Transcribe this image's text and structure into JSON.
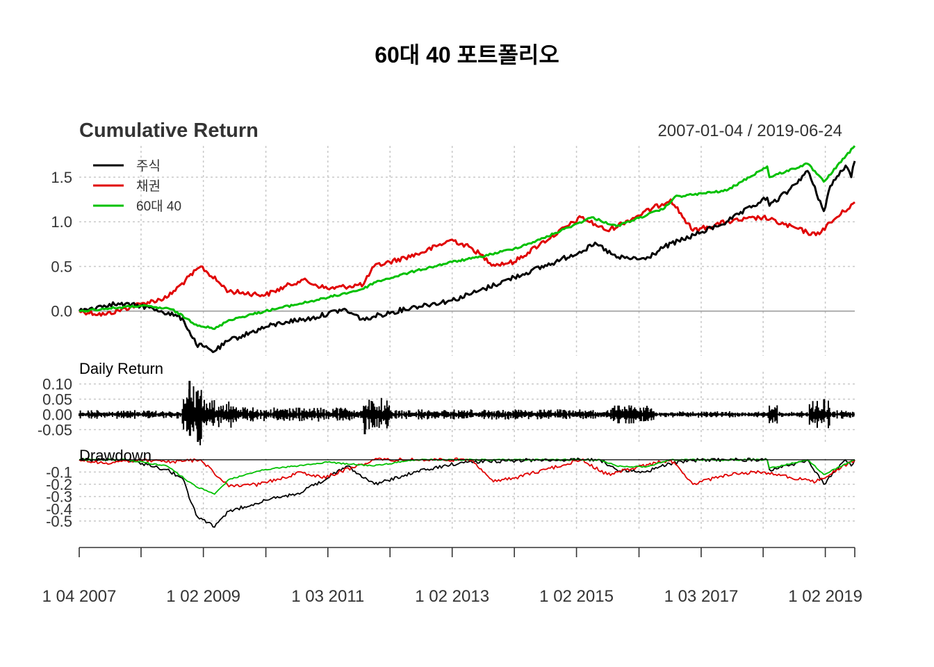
{
  "title": "60대 40 포트폴리오",
  "date_range": "2007-01-04 / 2019-06-24",
  "colors": {
    "stock": "#000000",
    "bond": "#e00000",
    "mix": "#00c000",
    "zero": "#999999",
    "grid": "#c8c8c8"
  },
  "chart_data": [
    {
      "type": "line",
      "title": "Cumulative Return",
      "ylim": [
        -0.5,
        1.85
      ],
      "y_ticks": [
        {
          "value": 0.0,
          "label": "0.0"
        },
        {
          "value": 0.5,
          "label": "0.5"
        },
        {
          "value": 1.0,
          "label": "1.0"
        },
        {
          "value": 1.5,
          "label": "1.5"
        }
      ],
      "grid": true,
      "legend_position": "top-left",
      "x_start": "2007-01-04",
      "x_end": "2019-06-24",
      "series": [
        {
          "name": "주식",
          "color_key": "stock",
          "x": [
            "2007-01-04",
            "2007-07-01",
            "2008-01-01",
            "2008-05-01",
            "2008-09-01",
            "2008-11-20",
            "2009-03-09",
            "2009-06-01",
            "2010-01-01",
            "2010-05-01",
            "2010-10-01",
            "2011-04-01",
            "2011-08-08",
            "2011-10-01",
            "2012-06-01",
            "2013-01-01",
            "2013-06-01",
            "2014-01-01",
            "2014-09-01",
            "2015-05-01",
            "2015-08-25",
            "2016-02-11",
            "2016-06-01",
            "2017-01-01",
            "2017-06-01",
            "2018-01-26",
            "2018-02-08",
            "2018-06-01",
            "2018-09-20",
            "2018-12-24",
            "2019-01-31",
            "2019-05-01",
            "2019-06-03",
            "2019-06-24"
          ],
          "y": [
            0.0,
            0.08,
            0.06,
            0.0,
            -0.08,
            -0.37,
            -0.45,
            -0.33,
            -0.18,
            -0.12,
            -0.08,
            0.02,
            -0.1,
            -0.06,
            0.05,
            0.12,
            0.22,
            0.38,
            0.55,
            0.75,
            0.6,
            0.58,
            0.72,
            0.88,
            1.0,
            1.27,
            1.18,
            1.35,
            1.57,
            1.12,
            1.4,
            1.63,
            1.5,
            1.68
          ]
        },
        {
          "name": "채권",
          "color_key": "bond",
          "x": [
            "2007-01-04",
            "2007-06-01",
            "2008-01-01",
            "2008-06-01",
            "2008-12-18",
            "2009-06-01",
            "2010-01-01",
            "2010-08-01",
            "2011-01-01",
            "2011-08-01",
            "2011-10-01",
            "2012-07-01",
            "2013-01-01",
            "2013-05-01",
            "2013-09-01",
            "2014-01-01",
            "2014-06-01",
            "2015-01-30",
            "2015-07-01",
            "2016-07-08",
            "2016-11-15",
            "2017-06-01",
            "2018-01-01",
            "2018-11-08",
            "2019-06-24"
          ],
          "y": [
            0.0,
            -0.04,
            0.08,
            0.15,
            0.5,
            0.22,
            0.18,
            0.35,
            0.25,
            0.3,
            0.5,
            0.65,
            0.8,
            0.7,
            0.52,
            0.55,
            0.75,
            1.05,
            0.9,
            1.25,
            0.9,
            1.0,
            1.05,
            0.85,
            1.22
          ]
        },
        {
          "name": "60대 40",
          "color_key": "mix",
          "x": [
            "2007-01-04",
            "2007-07-01",
            "2008-01-01",
            "2008-07-01",
            "2008-11-20",
            "2009-03-09",
            "2009-06-01",
            "2010-01-01",
            "2011-01-01",
            "2011-08-01",
            "2011-10-01",
            "2012-06-01",
            "2013-01-01",
            "2013-06-01",
            "2014-01-01",
            "2014-06-01",
            "2015-04-01",
            "2015-08-25",
            "2016-06-01",
            "2016-08-01",
            "2017-06-01",
            "2018-01-26",
            "2018-02-08",
            "2018-09-20",
            "2018-12-24",
            "2019-06-24"
          ],
          "y": [
            0.0,
            0.03,
            0.06,
            0.02,
            -0.15,
            -0.2,
            -0.1,
            0.0,
            0.15,
            0.25,
            0.32,
            0.45,
            0.55,
            0.6,
            0.7,
            0.8,
            1.05,
            0.95,
            1.15,
            1.28,
            1.35,
            1.62,
            1.5,
            1.65,
            1.45,
            1.85
          ]
        }
      ]
    },
    {
      "type": "bar",
      "title": "Daily Return",
      "ylim": [
        -0.09,
        0.14
      ],
      "y_ticks": [
        {
          "value": -0.05,
          "label": "-0.05"
        },
        {
          "value": 0.0,
          "label": "0.00"
        },
        {
          "value": 0.05,
          "label": "0.05"
        },
        {
          "value": 0.1,
          "label": "0.10"
        }
      ],
      "grid": true,
      "segments": [
        {
          "from": "2007-01-04",
          "to": "2008-08-31",
          "amplitude": 0.012
        },
        {
          "from": "2008-09-01",
          "to": "2008-12-31",
          "amplitude": 0.085
        },
        {
          "from": "2009-01-01",
          "to": "2009-06-30",
          "amplitude": 0.04
        },
        {
          "from": "2009-07-01",
          "to": "2011-07-31",
          "amplitude": 0.02
        },
        {
          "from": "2011-08-01",
          "to": "2011-12-31",
          "amplitude": 0.045
        },
        {
          "from": "2012-01-01",
          "to": "2015-07-31",
          "amplitude": 0.014
        },
        {
          "from": "2015-08-01",
          "to": "2016-03-31",
          "amplitude": 0.025
        },
        {
          "from": "2016-04-01",
          "to": "2018-01-31",
          "amplitude": 0.009
        },
        {
          "from": "2018-02-01",
          "to": "2018-03-31",
          "amplitude": 0.035
        },
        {
          "from": "2018-04-01",
          "to": "2018-09-30",
          "amplitude": 0.01
        },
        {
          "from": "2018-10-01",
          "to": "2019-01-31",
          "amplitude": 0.04
        },
        {
          "from": "2019-02-01",
          "to": "2019-06-24",
          "amplitude": 0.012
        }
      ],
      "peaks": [
        {
          "x": "2008-10-13",
          "y": 0.11
        },
        {
          "x": "2008-10-15",
          "y": -0.07
        },
        {
          "x": "2008-11-24",
          "y": 0.075
        },
        {
          "x": "2008-12-01",
          "y": -0.09
        },
        {
          "x": "2011-08-08",
          "y": -0.065
        },
        {
          "x": "2018-12-26",
          "y": 0.05
        }
      ]
    },
    {
      "type": "line",
      "title": "Drawdown",
      "ylim": [
        -0.58,
        0.01
      ],
      "y_ticks": [
        {
          "value": -0.1,
          "label": "-0.1"
        },
        {
          "value": -0.2,
          "label": "-0.2"
        },
        {
          "value": -0.3,
          "label": "-0.3"
        },
        {
          "value": -0.4,
          "label": "-0.4"
        },
        {
          "value": -0.5,
          "label": "-0.5"
        }
      ],
      "grid": true,
      "series": [
        {
          "name": "주식",
          "color_key": "stock",
          "x": [
            "2007-01-04",
            "2007-10-09",
            "2008-06-01",
            "2008-09-01",
            "2008-11-20",
            "2009-03-09",
            "2009-06-01",
            "2010-01-01",
            "2010-07-01",
            "2011-01-01",
            "2011-04-29",
            "2011-10-03",
            "2012-06-01",
            "2013-03-01",
            "2014-06-01",
            "2015-05-21",
            "2015-08-25",
            "2016-02-11",
            "2016-07-01",
            "2017-01-01",
            "2018-01-26",
            "2018-02-08",
            "2018-06-01",
            "2018-09-20",
            "2018-12-24",
            "2019-04-30",
            "2019-06-03",
            "2019-06-24"
          ],
          "y": [
            0.0,
            0.0,
            -0.08,
            -0.15,
            -0.45,
            -0.55,
            -0.42,
            -0.33,
            -0.28,
            -0.15,
            -0.05,
            -0.2,
            -0.1,
            -0.02,
            0.0,
            0.0,
            -0.08,
            -0.1,
            -0.03,
            0.0,
            0.0,
            -0.08,
            -0.05,
            0.0,
            -0.2,
            0.0,
            -0.05,
            0.0
          ]
        },
        {
          "name": "채권",
          "color_key": "bond",
          "x": [
            "2007-01-04",
            "2007-06-01",
            "2008-01-01",
            "2008-06-01",
            "2008-12-18",
            "2009-06-01",
            "2009-12-01",
            "2010-08-01",
            "2010-12-01",
            "2011-10-01",
            "2012-07-01",
            "2013-05-01",
            "2013-09-01",
            "2014-01-01",
            "2015-01-30",
            "2015-07-01",
            "2016-07-08",
            "2016-11-15",
            "2017-06-01",
            "2018-01-01",
            "2018-11-08",
            "2019-06-24"
          ],
          "y": [
            0.0,
            -0.03,
            0.0,
            -0.02,
            0.0,
            -0.22,
            -0.2,
            -0.1,
            -0.15,
            0.0,
            0.0,
            0.0,
            -0.18,
            -0.15,
            0.0,
            -0.12,
            0.0,
            -0.2,
            -0.12,
            -0.1,
            -0.18,
            0.0
          ]
        },
        {
          "name": "60대 40",
          "color_key": "mix",
          "x": [
            "2007-01-04",
            "2007-10-09",
            "2008-06-01",
            "2008-11-20",
            "2009-03-09",
            "2009-06-01",
            "2010-01-01",
            "2011-01-01",
            "2011-10-03",
            "2012-06-01",
            "2015-05-21",
            "2015-08-25",
            "2016-02-11",
            "2016-07-01",
            "2018-01-26",
            "2018-02-08",
            "2018-09-20",
            "2018-12-24",
            "2019-06-24"
          ],
          "y": [
            0.0,
            0.0,
            -0.05,
            -0.22,
            -0.28,
            -0.16,
            -0.08,
            -0.02,
            -0.05,
            0.0,
            0.0,
            -0.05,
            -0.06,
            0.0,
            0.0,
            -0.07,
            0.0,
            -0.12,
            0.0
          ]
        }
      ]
    }
  ],
  "x_axis": {
    "ticks": [
      "2007-01-04",
      "2008-01-02",
      "2009-01-02",
      "2010-01-04",
      "2011-01-03",
      "2012-01-03",
      "2013-01-02",
      "2014-01-02",
      "2015-01-02",
      "2016-01-04",
      "2017-01-03",
      "2018-01-02",
      "2019-01-02",
      "2019-06-24"
    ],
    "labels": [
      {
        "x": "2007-01-04",
        "text": "1 04 2007"
      },
      {
        "x": "2009-01-02",
        "text": "1 02 2009"
      },
      {
        "x": "2011-01-03",
        "text": "1 03 2011"
      },
      {
        "x": "2013-01-02",
        "text": "1 02 2013"
      },
      {
        "x": "2015-01-02",
        "text": "1 02 2015"
      },
      {
        "x": "2017-01-03",
        "text": "1 03 2017"
      },
      {
        "x": "2019-01-02",
        "text": "1 02 2019"
      }
    ]
  }
}
